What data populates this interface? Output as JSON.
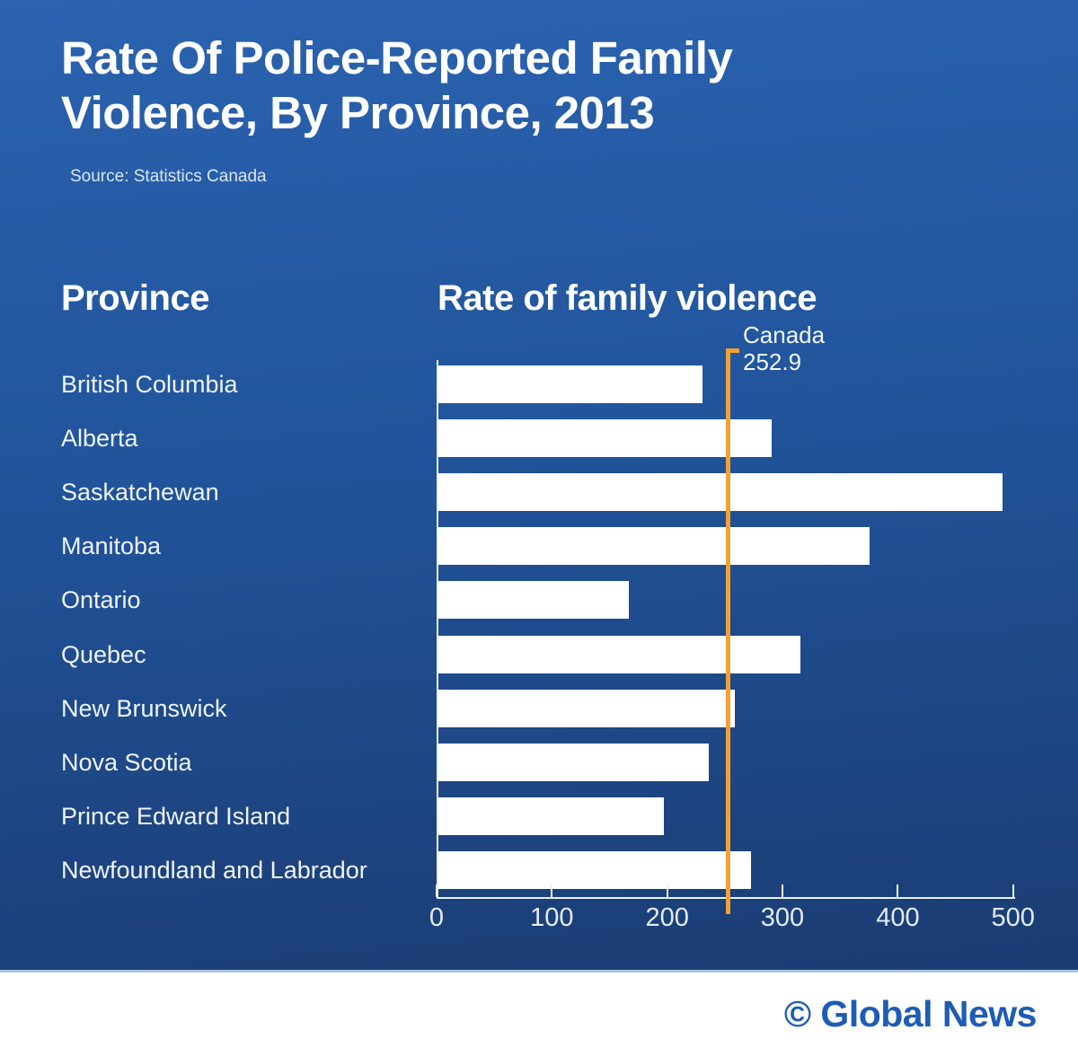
{
  "header": {
    "title": "Rate Of Police-Reported Family Violence, By Province, 2013",
    "source": "Source: Statistics Canada"
  },
  "columns": {
    "province_header": "Province",
    "rate_header": "Rate of family violence"
  },
  "chart_data": {
    "type": "bar",
    "orientation": "horizontal",
    "title": "Rate Of Police-Reported Family Violence, By Province, 2013",
    "xlabel": "Rate of family violence",
    "ylabel": "Province",
    "categories": [
      "British Columbia",
      "Alberta",
      "Saskatchewan",
      "Manitoba",
      "Ontario",
      "Quebec",
      "New Brunswick",
      "Nova Scotia",
      "Prince Edward Island",
      "Newfoundland and Labrador"
    ],
    "values": [
      230,
      290,
      490,
      375,
      166,
      315,
      258,
      235,
      196,
      272
    ],
    "xlim": [
      0,
      500
    ],
    "xticks": [
      0,
      100,
      200,
      300,
      400,
      500
    ],
    "grid": false,
    "legend": false,
    "reference_line": {
      "label": "Canada",
      "value": 252.9
    },
    "bar_color": "#FFFFFF",
    "reference_color": "#F2A134",
    "background_top": "#2B63B0",
    "background_bottom": "#1B3C73"
  },
  "footer": {
    "brand": "© Global News"
  }
}
